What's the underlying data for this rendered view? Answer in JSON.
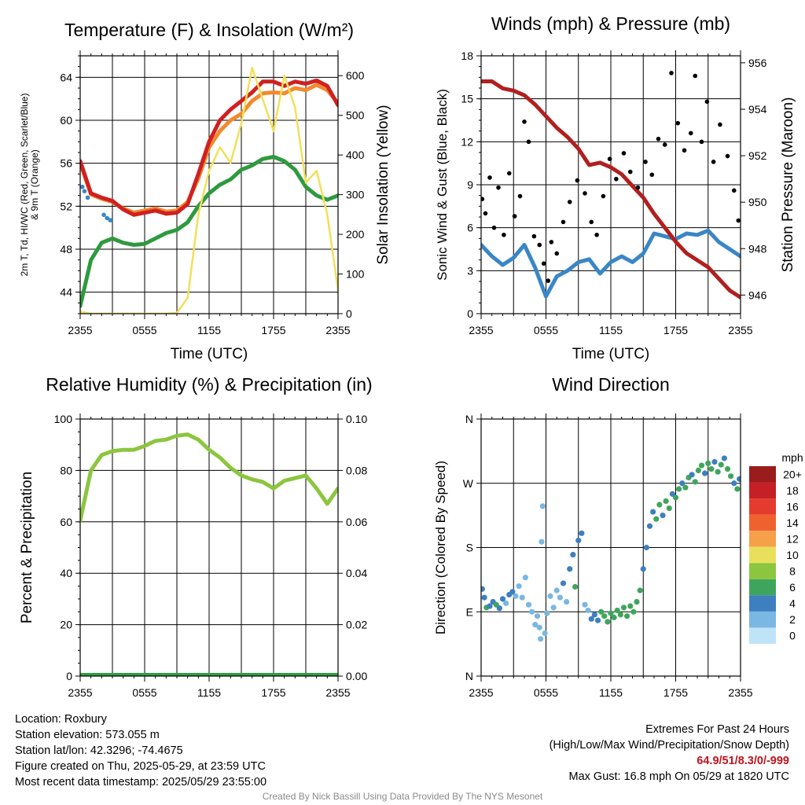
{
  "chart_data": [
    {
      "type": "line",
      "title": "Temperature (F) & Insolation (W/m²)",
      "xlabel": "Time (UTC)",
      "ylabel": "2m T, Td, HI/WC (Red, Green, Scarlet/Blue) & 9m T (Orange)",
      "y2label": "Solar Insolation (Yellow)",
      "x_ticks": [
        "2355",
        "0555",
        "1155",
        "1755",
        "2355"
      ],
      "ylim": [
        42,
        66
      ],
      "y_ticks": [
        44,
        48,
        52,
        56,
        60,
        64
      ],
      "y2lim": [
        0,
        650
      ],
      "y2_ticks": [
        0,
        100,
        200,
        300,
        400,
        500,
        600
      ],
      "grid": true,
      "x_hours": [
        0,
        1,
        2,
        3,
        4,
        5,
        6,
        7,
        8,
        9,
        10,
        11,
        12,
        13,
        14,
        15,
        16,
        17,
        18,
        19,
        20,
        21,
        22,
        23,
        24
      ],
      "series": [
        {
          "color": "#2e9a3e",
          "axis": "left",
          "values": [
            42.7,
            47.0,
            48.6,
            49.0,
            48.6,
            48.4,
            48.5,
            49.0,
            49.5,
            49.8,
            50.5,
            52.0,
            53.2,
            54.0,
            54.5,
            55.4,
            55.8,
            56.4,
            56.6,
            56.2,
            55.4,
            53.8,
            53.0,
            52.6,
            53.0
          ]
        },
        {
          "color": "#f28a2e",
          "axis": "left",
          "values": [
            56.0,
            53.1,
            52.7,
            52.4,
            51.8,
            51.4,
            51.6,
            51.8,
            51.5,
            51.6,
            52.4,
            54.6,
            57.5,
            59.0,
            60.0,
            60.6,
            61.8,
            62.5,
            62.6,
            62.5,
            63.0,
            62.8,
            63.3,
            62.8,
            61.6
          ]
        },
        {
          "color": "#d02020",
          "axis": "left",
          "values": [
            56.2,
            53.2,
            52.8,
            52.5,
            51.7,
            51.2,
            51.4,
            51.6,
            51.3,
            51.4,
            52.2,
            55.0,
            58.0,
            60.0,
            61.0,
            61.8,
            62.6,
            63.6,
            63.6,
            63.2,
            63.6,
            63.4,
            63.7,
            63.2,
            61.4
          ]
        },
        {
          "color": "#f2e05a",
          "axis": "right",
          "values": [
            5,
            0,
            0,
            0,
            0,
            0,
            0,
            0,
            0,
            2,
            40,
            250,
            360,
            420,
            380,
            480,
            620,
            540,
            460,
            600,
            520,
            330,
            360,
            250,
            60
          ]
        }
      ],
      "scatter_series": [
        {
          "color": "#3a86c6",
          "points": [
            [
              0.2,
              53.8
            ],
            [
              0.4,
              53.4
            ],
            [
              0.7,
              52.8
            ],
            [
              2.2,
              51.2
            ],
            [
              2.5,
              50.9
            ],
            [
              2.8,
              50.7
            ]
          ]
        }
      ]
    },
    {
      "type": "line",
      "title": "Winds (mph) & Pressure (mb)",
      "xlabel": "Time (UTC)",
      "ylabel": "Sonic Wind & Gust (Blue, Black)",
      "y2label": "Station Pressure (Maroon)",
      "x_ticks": [
        "2355",
        "0555",
        "1155",
        "1755",
        "2355"
      ],
      "ylim": [
        0,
        18
      ],
      "y_ticks": [
        0,
        3,
        6,
        9,
        12,
        15,
        18
      ],
      "y2lim": [
        945.2,
        956.3
      ],
      "y2_ticks": [
        946,
        948,
        950,
        952,
        954,
        956
      ],
      "grid": true,
      "x_hours": [
        0,
        1,
        2,
        3,
        4,
        5,
        6,
        7,
        8,
        9,
        10,
        11,
        12,
        13,
        14,
        15,
        16,
        17,
        18,
        19,
        20,
        21,
        22,
        23,
        24
      ],
      "series": [
        {
          "color": "#3a86c6",
          "axis": "left",
          "values": [
            4.8,
            4.0,
            3.4,
            3.9,
            4.8,
            3.2,
            1.2,
            2.6,
            3.0,
            3.6,
            3.8,
            2.8,
            3.6,
            4.0,
            3.6,
            4.2,
            5.6,
            5.4,
            5.2,
            5.6,
            5.5,
            5.8,
            5.0,
            4.5,
            4.0
          ]
        },
        {
          "color": "#b0201f",
          "axis": "right",
          "values": [
            955.2,
            955.2,
            954.9,
            954.8,
            954.6,
            954.2,
            953.7,
            953.2,
            952.8,
            952.3,
            951.6,
            951.7,
            951.5,
            951.2,
            950.7,
            950.2,
            949.5,
            948.9,
            948.3,
            947.8,
            947.5,
            947.2,
            946.7,
            946.2,
            945.9
          ]
        }
      ],
      "scatter_series": [
        {
          "color": "#000000",
          "points": [
            [
              0.1,
              8.0
            ],
            [
              0.4,
              7.0
            ],
            [
              0.8,
              9.5
            ],
            [
              1.2,
              6.0
            ],
            [
              1.6,
              8.8
            ],
            [
              2.1,
              5.5
            ],
            [
              2.6,
              9.8
            ],
            [
              3.1,
              6.8
            ],
            [
              3.6,
              8.2
            ],
            [
              4.0,
              13.4
            ],
            [
              4.4,
              12.0
            ],
            [
              4.9,
              5.4
            ],
            [
              5.4,
              4.8
            ],
            [
              5.8,
              3.5
            ],
            [
              6.2,
              2.3
            ],
            [
              6.5,
              5.0
            ],
            [
              7.0,
              4.2
            ],
            [
              7.6,
              6.4
            ],
            [
              8.2,
              7.8
            ],
            [
              8.9,
              9.3
            ],
            [
              9.6,
              8.4
            ],
            [
              10.2,
              6.4
            ],
            [
              10.7,
              5.5
            ],
            [
              11.3,
              8.2
            ],
            [
              11.9,
              10.8
            ],
            [
              12.5,
              9.4
            ],
            [
              13.2,
              11.2
            ],
            [
              13.8,
              9.9
            ],
            [
              14.5,
              8.8
            ],
            [
              15.2,
              10.6
            ],
            [
              15.8,
              9.7
            ],
            [
              16.4,
              12.2
            ],
            [
              17.0,
              11.8
            ],
            [
              17.6,
              16.8
            ],
            [
              18.2,
              13.3
            ],
            [
              18.8,
              11.4
            ],
            [
              19.4,
              12.6
            ],
            [
              19.8,
              16.6
            ],
            [
              20.4,
              12.0
            ],
            [
              20.9,
              14.8
            ],
            [
              21.5,
              10.6
            ],
            [
              22.1,
              13.2
            ],
            [
              22.8,
              11.0
            ],
            [
              23.4,
              8.6
            ],
            [
              23.8,
              6.5
            ]
          ]
        }
      ]
    },
    {
      "type": "line",
      "title": "Relative Humidity (%) & Precipitation (in)",
      "xlabel": "",
      "ylabel": "Percent & Precipitation",
      "x_ticks": [
        "2355",
        "0555",
        "1155",
        "1755",
        "2355"
      ],
      "ylim": [
        0,
        100
      ],
      "y_ticks": [
        "0",
        "20",
        "40",
        "60",
        "80",
        "100"
      ],
      "y2lim": [
        0,
        0.1
      ],
      "y2_ticks": [
        "0.00",
        "0.02",
        "0.04",
        "0.06",
        "0.08",
        "0.10"
      ],
      "grid": true,
      "x_hours": [
        0,
        1,
        2,
        3,
        4,
        5,
        6,
        7,
        8,
        9,
        10,
        11,
        12,
        13,
        14,
        15,
        16,
        17,
        18,
        19,
        20,
        21,
        22,
        23,
        24
      ],
      "series": [
        {
          "color": "#8cc63f",
          "axis": "left",
          "values": [
            60.5,
            80.0,
            86.0,
            87.5,
            88.0,
            88.0,
            89.5,
            91.5,
            92.0,
            93.5,
            94.0,
            92.0,
            88.0,
            85.0,
            81.0,
            78.0,
            76.5,
            75.5,
            73.0,
            76.0,
            77.0,
            78.0,
            73.0,
            67.0,
            73.0
          ]
        },
        {
          "color": "#2f9e44",
          "axis": "right",
          "values": [
            0,
            0,
            0,
            0,
            0,
            0,
            0,
            0,
            0,
            0,
            0,
            0,
            0,
            0,
            0,
            0,
            0,
            0,
            0,
            0,
            0,
            0,
            0,
            0,
            0
          ]
        }
      ]
    },
    {
      "type": "scatter",
      "title": "Wind Direction",
      "ylabel": "Direction (Colored By Speed)",
      "x_ticks": [
        "2355",
        "0555",
        "1155",
        "1755",
        "2355"
      ],
      "ylim": [
        0,
        360
      ],
      "y_ticks": [
        "N",
        "E",
        "S",
        "W",
        "N"
      ],
      "grid": true,
      "colorbar": {
        "title": "mph",
        "labels": [
          "20+",
          "18",
          "16",
          "14",
          "12",
          "10",
          "8",
          "6",
          "4",
          "2",
          "0"
        ],
        "colors": [
          "#9b1c1c",
          "#c42026",
          "#e53a2e",
          "#f0622d",
          "#f7a04a",
          "#e8e05a",
          "#8cc63f",
          "#3ea65c",
          "#3d7fbf",
          "#7ab7e2",
          "#bfe4f7"
        ]
      },
      "points": [
        [
          0.1,
          122,
          4
        ],
        [
          0.3,
          110,
          3
        ],
        [
          0.5,
          96,
          5
        ],
        [
          0.8,
          98,
          4
        ],
        [
          1.1,
          104,
          3
        ],
        [
          1.4,
          100,
          5
        ],
        [
          1.7,
          95,
          4
        ],
        [
          2.0,
          108,
          3
        ],
        [
          2.3,
          102,
          2
        ],
        [
          2.6,
          114,
          4
        ],
        [
          2.9,
          118,
          3
        ],
        [
          3.2,
          112,
          2
        ],
        [
          3.5,
          126,
          1
        ],
        [
          3.8,
          110,
          2
        ],
        [
          4.1,
          138,
          1
        ],
        [
          4.4,
          100,
          2
        ],
        [
          4.7,
          90,
          1
        ],
        [
          5.0,
          72,
          1
        ],
        [
          5.2,
          84,
          1
        ],
        [
          5.4,
          68,
          1
        ],
        [
          5.5,
          52,
          1
        ],
        [
          5.6,
          188,
          1
        ],
        [
          5.7,
          238,
          1
        ],
        [
          5.9,
          60,
          1
        ],
        [
          6.1,
          88,
          2
        ],
        [
          6.4,
          112,
          1
        ],
        [
          6.7,
          96,
          2
        ],
        [
          7.0,
          120,
          2
        ],
        [
          7.3,
          110,
          1
        ],
        [
          7.6,
          130,
          3
        ],
        [
          7.9,
          104,
          2
        ],
        [
          8.2,
          150,
          3
        ],
        [
          8.5,
          170,
          3
        ],
        [
          8.7,
          125,
          5
        ],
        [
          9.0,
          190,
          3
        ],
        [
          9.3,
          200,
          4
        ],
        [
          9.6,
          100,
          2
        ],
        [
          9.9,
          92,
          1
        ],
        [
          10.2,
          80,
          3
        ],
        [
          10.5,
          86,
          4
        ],
        [
          10.8,
          78,
          3
        ],
        [
          11.1,
          90,
          5
        ],
        [
          11.4,
          84,
          6
        ],
        [
          11.7,
          76,
          6
        ],
        [
          12.0,
          88,
          5
        ],
        [
          12.3,
          82,
          6
        ],
        [
          12.6,
          92,
          5
        ],
        [
          12.9,
          86,
          6
        ],
        [
          13.2,
          96,
          6
        ],
        [
          13.5,
          84,
          5
        ],
        [
          13.8,
          98,
          6
        ],
        [
          14.1,
          90,
          6
        ],
        [
          14.4,
          104,
          5
        ],
        [
          14.7,
          120,
          6
        ],
        [
          15.0,
          150,
          4
        ],
        [
          15.3,
          180,
          4
        ],
        [
          15.6,
          210,
          3
        ],
        [
          15.9,
          230,
          4
        ],
        [
          16.2,
          220,
          6
        ],
        [
          16.5,
          240,
          5
        ],
        [
          16.8,
          225,
          4
        ],
        [
          17.1,
          245,
          6
        ],
        [
          17.4,
          235,
          5
        ],
        [
          17.7,
          255,
          4
        ],
        [
          18.0,
          250,
          6
        ],
        [
          18.3,
          262,
          5
        ],
        [
          18.6,
          270,
          4
        ],
        [
          18.9,
          264,
          6
        ],
        [
          19.2,
          278,
          5
        ],
        [
          19.5,
          282,
          4
        ],
        [
          19.8,
          272,
          6
        ],
        [
          20.1,
          288,
          5
        ],
        [
          20.4,
          295,
          6
        ],
        [
          20.7,
          284,
          4
        ],
        [
          21.0,
          298,
          5
        ],
        [
          21.3,
          290,
          6
        ],
        [
          21.6,
          300,
          4
        ],
        [
          21.9,
          286,
          5
        ],
        [
          22.2,
          296,
          6
        ],
        [
          22.5,
          305,
          4
        ],
        [
          22.8,
          290,
          5
        ],
        [
          23.1,
          280,
          6
        ],
        [
          23.4,
          270,
          4
        ],
        [
          23.7,
          262,
          5
        ],
        [
          23.9,
          276,
          4
        ]
      ]
    }
  ],
  "station": {
    "location": "Location: Roxbury",
    "elevation": "Station elevation: 573.055 m",
    "latlon": "Station lat/lon: 42.3296; -74.4675",
    "created": "Figure created on Thu, 2025-05-29, at 23:59 UTC",
    "recent": "Most recent data timestamp: 2025/05/29 23:55:00"
  },
  "extremes": {
    "title": "Extremes For Past 24 Hours",
    "subtitle": "(High/Low/Max Wind/Precipitation/Snow Depth)",
    "values": "64.9/51/8.3/0/-999",
    "gust": "Max Gust: 16.8 mph On 05/29 at 1820 UTC"
  },
  "credit": "Created By Nick Bassill Using Data Provided By The NYS Mesonet"
}
